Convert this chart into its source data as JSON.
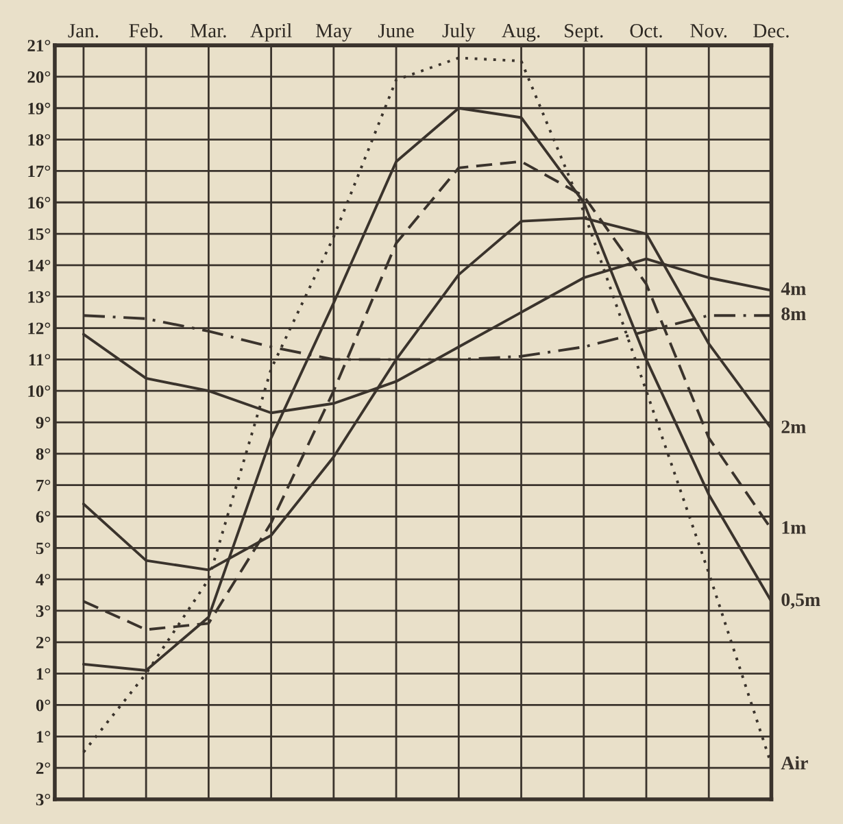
{
  "chart_data": {
    "type": "line",
    "categories": [
      "Jan.",
      "Feb.",
      "Mar.",
      "April",
      "May",
      "June",
      "July",
      "Aug.",
      "Sept.",
      "Oct.",
      "Nov.",
      "Dec."
    ],
    "series": [
      {
        "name": "4m",
        "color": "#3a332c",
        "line_style": "solid",
        "values": [
          11.8,
          10.4,
          10.0,
          9.3,
          9.6,
          10.3,
          11.4,
          12.5,
          13.6,
          14.2,
          13.6,
          13.2
        ]
      },
      {
        "name": "8m",
        "color": "#3a332c",
        "line_style": "dashdot",
        "values": [
          12.4,
          12.3,
          11.9,
          11.4,
          11.0,
          11.0,
          11.0,
          11.1,
          11.4,
          11.9,
          12.4,
          12.4
        ]
      },
      {
        "name": "2m",
        "color": "#3a332c",
        "line_style": "solid",
        "values": [
          6.4,
          4.6,
          4.3,
          5.4,
          7.9,
          11.0,
          13.7,
          15.4,
          15.5,
          15.0,
          11.5,
          8.8
        ]
      },
      {
        "name": "1m",
        "color": "#3a332c",
        "line_style": "dashed",
        "values": [
          3.3,
          2.4,
          2.6,
          5.8,
          10.0,
          14.7,
          17.1,
          17.3,
          16.2,
          13.4,
          8.5,
          5.6
        ]
      },
      {
        "name": "0,5m",
        "color": "#3a332c",
        "line_style": "solid",
        "values": [
          1.3,
          1.1,
          2.8,
          8.5,
          12.8,
          17.3,
          19.0,
          18.7,
          16.0,
          11.0,
          6.7,
          3.3
        ]
      },
      {
        "name": "Air",
        "color": "#3a332c",
        "line_style": "dotted",
        "values": [
          -1.5,
          1.0,
          4.0,
          10.7,
          14.9,
          19.9,
          20.6,
          20.5,
          15.7,
          10.0,
          4.2,
          -1.9
        ]
      }
    ],
    "ylim": [
      -3,
      21
    ],
    "yticks": [
      {
        "value": -3,
        "label": "3°"
      },
      {
        "value": -2,
        "label": "2°"
      },
      {
        "value": -1,
        "label": "1°"
      },
      {
        "value": 0,
        "label": "0°"
      },
      {
        "value": 1,
        "label": "1°"
      },
      {
        "value": 2,
        "label": "2°"
      },
      {
        "value": 3,
        "label": "3°"
      },
      {
        "value": 4,
        "label": "4°"
      },
      {
        "value": 5,
        "label": "5°"
      },
      {
        "value": 6,
        "label": "6°"
      },
      {
        "value": 7,
        "label": "7°"
      },
      {
        "value": 8,
        "label": "8°"
      },
      {
        "value": 9,
        "label": "9°"
      },
      {
        "value": 10,
        "label": "10°"
      },
      {
        "value": 11,
        "label": "11°"
      },
      {
        "value": 12,
        "label": "12°"
      },
      {
        "value": 13,
        "label": "13°"
      },
      {
        "value": 14,
        "label": "14°"
      },
      {
        "value": 15,
        "label": "15°"
      },
      {
        "value": 16,
        "label": "16°"
      },
      {
        "value": 17,
        "label": "17°"
      },
      {
        "value": 18,
        "label": "18°"
      },
      {
        "value": 19,
        "label": "19°"
      },
      {
        "value": 20,
        "label": "20°"
      },
      {
        "value": 21,
        "label": "21°"
      }
    ],
    "grid": true,
    "legend": false
  }
}
